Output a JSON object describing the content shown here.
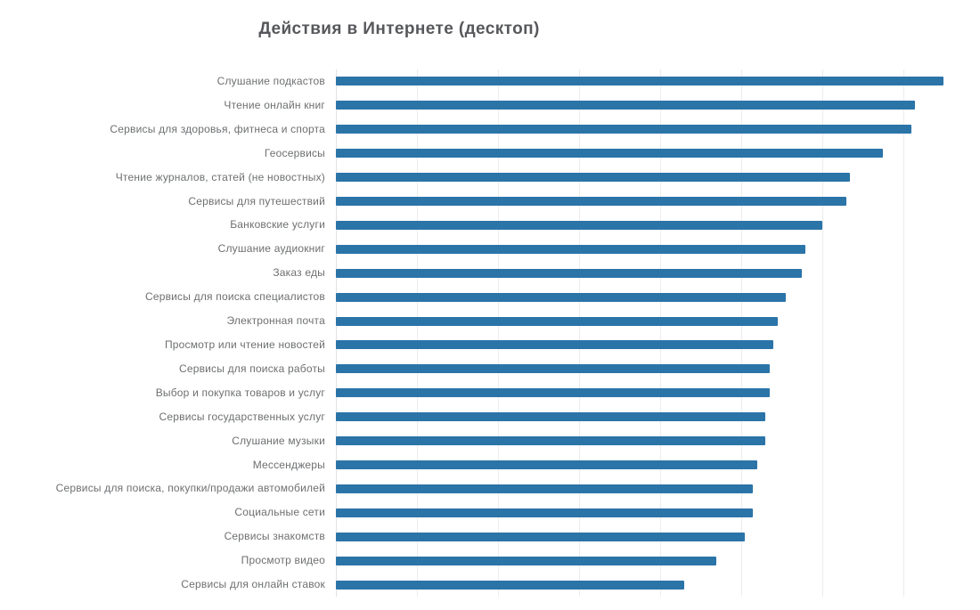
{
  "title": "Действия в Интернете (десктоп)",
  "colors": {
    "bar": "#2b74a8",
    "title_text": "#57585b",
    "label_text": "#6d6f71",
    "gridline": "#ececec",
    "background": "#ffffff"
  },
  "chart_data": {
    "type": "bar",
    "orientation": "horizontal",
    "title": "Действия в Интернете (десктоп)",
    "xlabel": "",
    "ylabel": "",
    "xlim": [
      0,
      79.5
    ],
    "grid": true,
    "gridline_ticks": [
      0,
      10,
      20,
      30,
      40,
      50,
      60,
      70
    ],
    "axis_tick_labels_visible": false,
    "value_labels_visible": false,
    "legend": "none",
    "categories": [
      "Слушание подкастов",
      "Чтение онлайн книг",
      "Сервисы для здоровья, фитнеса и спорта",
      "Геосервисы",
      "Чтение журналов, статей (не новостных)",
      "Сервисы для путешествий",
      "Банковские услуги",
      "Слушание аудиокниг",
      "Заказ еды",
      "Сервисы для поиска специалистов",
      "Электронная почта",
      "Просмотр или чтение новостей",
      "Сервисы для поиска работы",
      "Выбор и покупка товаров и услуг",
      "Сервисы государственных услуг",
      "Слушание музыки",
      "Мессенджеры",
      "Сервисы для поиска, покупки/продажи автомобилей",
      "Социальные сети",
      "Сервисы знакомств",
      "Просмотр видео",
      "Сервисы для онлайн ставок"
    ],
    "values": [
      75,
      71.5,
      71,
      67.5,
      63.5,
      63,
      60,
      58,
      57.5,
      55.5,
      54.5,
      54,
      53.5,
      53.5,
      53,
      53,
      52,
      51.5,
      51.5,
      50.5,
      47,
      43
    ]
  }
}
